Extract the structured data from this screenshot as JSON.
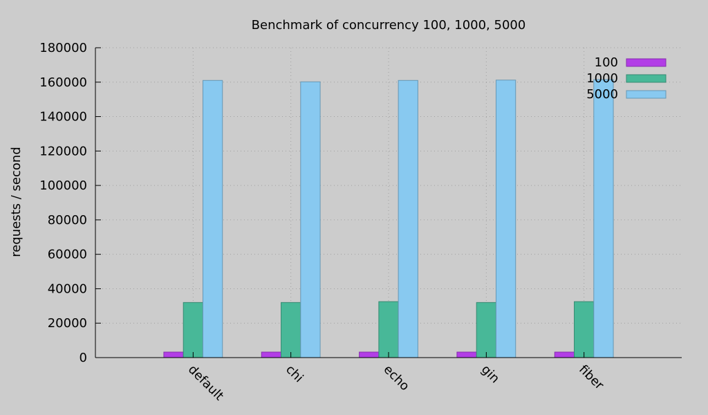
{
  "chart_data": {
    "type": "bar",
    "title": "Benchmark of concurrency 100, 1000, 5000",
    "xlabel": "",
    "ylabel": "requests / second",
    "ylim": [
      0,
      180000
    ],
    "yticks": [
      0,
      20000,
      40000,
      60000,
      80000,
      100000,
      120000,
      140000,
      160000,
      180000
    ],
    "categories": [
      "default",
      "chi",
      "echo",
      "gin",
      "fiber"
    ],
    "series": [
      {
        "name": "100",
        "color": "#b23ee6",
        "values": [
          3200,
          3200,
          3200,
          3200,
          3200
        ]
      },
      {
        "name": "1000",
        "color": "#48b898",
        "values": [
          32000,
          32000,
          32500,
          32000,
          32500
        ]
      },
      {
        "name": "5000",
        "color": "#88c9f0",
        "values": [
          161000,
          160200,
          161000,
          161200,
          161500
        ]
      }
    ],
    "grid": true,
    "legend_position": "top-right"
  }
}
